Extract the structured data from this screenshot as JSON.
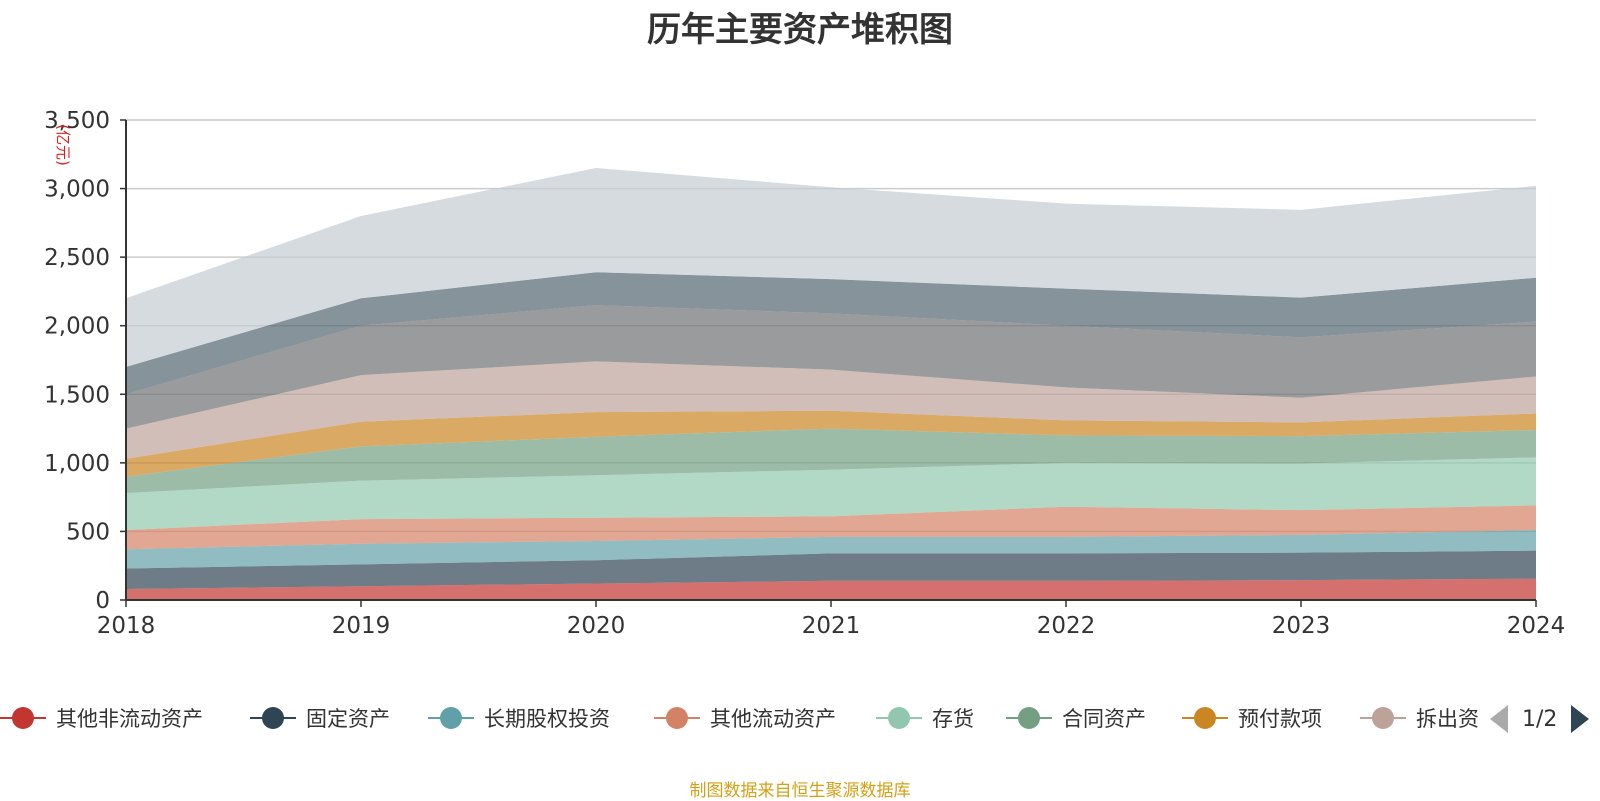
{
  "title": "历年主要资产堆积图",
  "source_text": "制图数据来自恒生聚源数据库",
  "pager": {
    "text": "1/2"
  },
  "legend": [
    {
      "label": "其他非流动资产",
      "color": "#c23531"
    },
    {
      "label": "固定资产",
      "color": "#2f4554"
    },
    {
      "label": "长期股权投资",
      "color": "#61a0a8"
    },
    {
      "label": "其他流动资产",
      "color": "#d48265"
    },
    {
      "label": "存货",
      "color": "#91c7ae"
    },
    {
      "label": "合同资产",
      "color": "#749f83"
    },
    {
      "label": "预付款项",
      "color": "#ca8622"
    },
    {
      "label": "拆出资金",
      "color": "#bda29a"
    }
  ],
  "chart_data": {
    "type": "area",
    "stacked": true,
    "title": "历年主要资产堆积图",
    "ylabel": "(亿元)",
    "x": [
      "2018",
      "2019",
      "2020",
      "2021",
      "2022",
      "2023",
      "2024"
    ],
    "ylim": [
      0,
      3500
    ],
    "yticks": [
      0,
      500,
      1000,
      1500,
      2000,
      2500,
      3000,
      3500
    ],
    "ytick_labels": [
      "0",
      "500",
      "1,000",
      "1,500",
      "2,000",
      "2,500",
      "3,000",
      "3,500"
    ],
    "grid": true,
    "series": [
      {
        "name": "其他非流动资产",
        "color": "#c23531",
        "values": [
          80,
          100,
          120,
          140,
          140,
          145,
          155
        ]
      },
      {
        "name": "固定资产",
        "color": "#2f4554",
        "values": [
          150,
          160,
          170,
          200,
          200,
          200,
          205
        ]
      },
      {
        "name": "长期股权投资",
        "color": "#61a0a8",
        "values": [
          140,
          150,
          140,
          120,
          120,
          130,
          150
        ]
      },
      {
        "name": "其他流动资产",
        "color": "#d48265",
        "values": [
          140,
          180,
          170,
          150,
          220,
          180,
          180
        ]
      },
      {
        "name": "存货",
        "color": "#91c7ae",
        "values": [
          270,
          280,
          310,
          340,
          320,
          340,
          350
        ]
      },
      {
        "name": "合同资产",
        "color": "#749f83",
        "values": [
          120,
          250,
          280,
          300,
          200,
          200,
          200
        ]
      },
      {
        "name": "预付款项",
        "color": "#ca8622",
        "values": [
          130,
          180,
          180,
          130,
          110,
          100,
          120
        ]
      },
      {
        "name": "拆出资金",
        "color": "#bda29a",
        "values": [
          220,
          340,
          370,
          300,
          240,
          180,
          270
        ]
      },
      {
        "name": "",
        "color": "#6e7074",
        "values": [
          250,
          360,
          410,
          410,
          450,
          440,
          400
        ]
      },
      {
        "name": "",
        "color": "#546570",
        "values": [
          200,
          200,
          240,
          250,
          270,
          290,
          320
        ]
      },
      {
        "name": "",
        "color": "#c4ccd3",
        "values": [
          500,
          600,
          760,
          670,
          620,
          640,
          670
        ]
      }
    ]
  }
}
